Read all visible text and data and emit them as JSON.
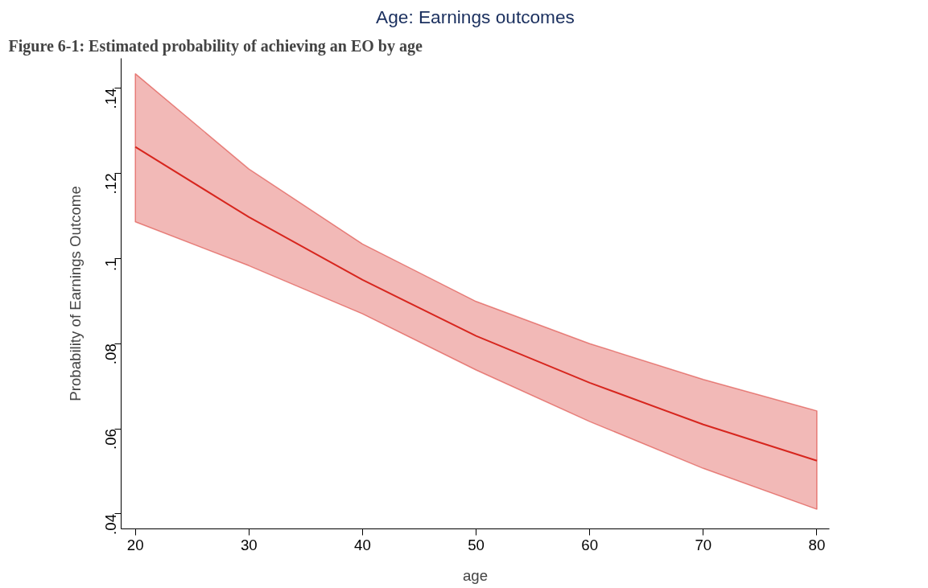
{
  "chart_data": {
    "type": "line",
    "title": "Age: Earnings outcomes",
    "xlabel": "age",
    "ylabel": "Probability of Earnings Outcome",
    "annotations": [
      "Figure 6-1: Estimated probability of achieving an EO by age"
    ],
    "x": [
      20,
      30,
      40,
      50,
      60,
      70,
      80
    ],
    "series": [
      {
        "color": "#d7261e",
        "values": [
          0.1262,
          0.1097,
          0.095,
          0.0818,
          0.0708,
          0.061,
          0.0525
        ],
        "lower": [
          0.1086,
          0.0983,
          0.087,
          0.0738,
          0.0617,
          0.0507,
          0.0411
        ],
        "upper": [
          0.1434,
          0.121,
          0.1034,
          0.0899,
          0.08,
          0.0716,
          0.0642
        ]
      }
    ],
    "xlim": [
      18.75,
      81.1
    ],
    "ylim": [
      0.0365,
      0.147
    ],
    "xticks": [
      20,
      30,
      40,
      50,
      60,
      70,
      80
    ],
    "yticks": [
      {
        "value": 0.04,
        "label": ".04"
      },
      {
        "value": 0.06,
        "label": ".06"
      },
      {
        "value": 0.08,
        "label": ".08"
      },
      {
        "value": 0.1,
        "label": ".1"
      },
      {
        "value": 0.12,
        "label": ".12"
      },
      {
        "value": 0.14,
        "label": ".14"
      }
    ],
    "grid": false
  }
}
